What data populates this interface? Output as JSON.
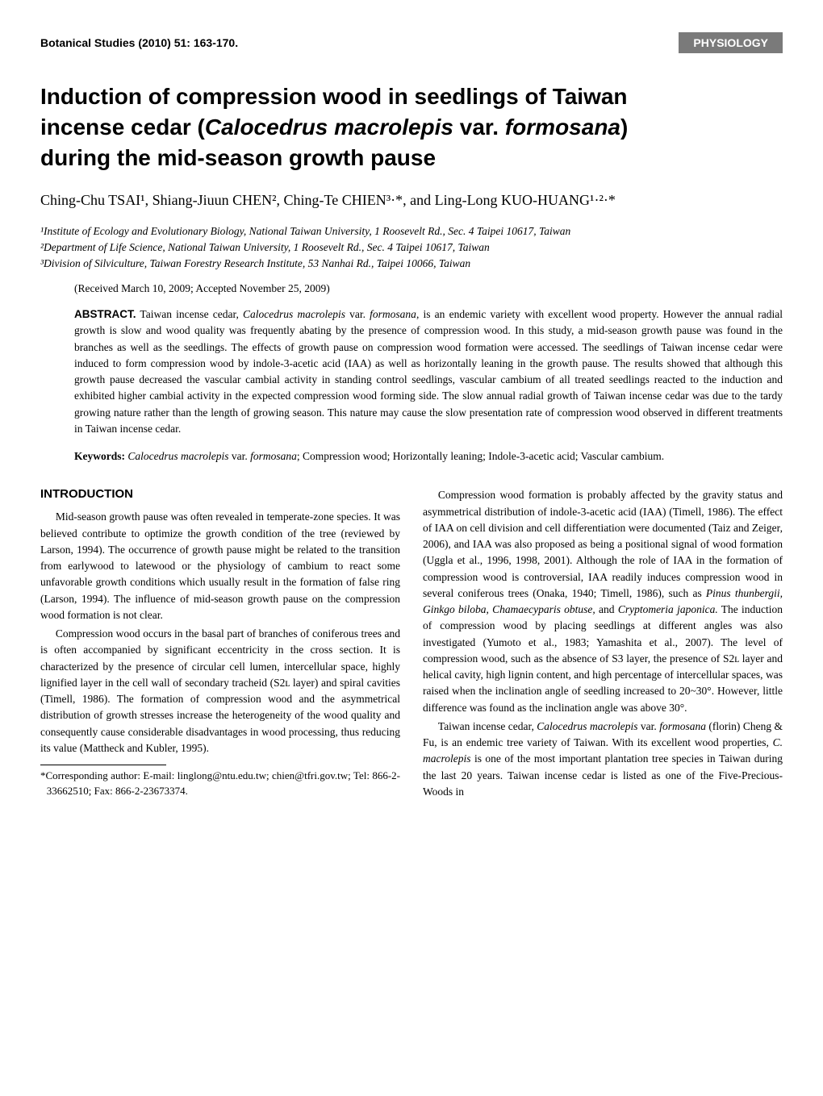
{
  "header": {
    "journal_ref": "Botanical Studies (2010) 51: 163-170.",
    "badge": "PHYSIOLOGY"
  },
  "title": {
    "line1": "Induction of compression wood in seedlings of Taiwan",
    "line2_pre": "incense cedar (",
    "line2_species": "Calocedrus macrolepis",
    "line2_var": " var. ",
    "line2_varname": "formosana",
    "line2_post": ")",
    "line3": "during the mid-season growth pause"
  },
  "authors": "Ching-Chu TSAI¹, Shiang-Jiuun CHEN², Ching-Te CHIEN³·*, and Ling-Long KUO-HUANG¹·²·*",
  "affiliations": {
    "a1": "¹Institute of Ecology and Evolutionary Biology, National Taiwan University, 1 Roosevelt Rd., Sec. 4 Taipei 10617, Taiwan",
    "a2": "²Department of Life Science, National Taiwan University, 1 Roosevelt Rd., Sec. 4 Taipei 10617, Taiwan",
    "a3": "³Division of Silviculture, Taiwan Forestry Research Institute, 53 Nanhai Rd., Taipei 10066, Taiwan"
  },
  "dates": "(Received March 10, 2009; Accepted November 25, 2009)",
  "abstract": {
    "label": "ABSTRACT.",
    "text_pre": "  Taiwan incense cedar, ",
    "species1": "Calocedrus macrolepis",
    "var_literal": " var. ",
    "species1_var": "formosana",
    "text_post": ", is an endemic variety with excellent wood property. However the annual radial growth is slow and wood quality was frequently abating by the presence of compression wood. In this study, a mid-season growth pause was found in the branches as well as the seedlings. The effects of growth pause on compression wood formation were accessed. The seedlings of Taiwan incense cedar were induced to form compression wood by indole-3-acetic acid (IAA) as well as horizontally leaning in the growth pause. The results showed that although this growth pause decreased the vascular cambial activity in standing control seedlings, vascular cambium of all treated seedlings reacted to the induction and exhibited higher cambial activity in the expected compression wood forming side. The slow annual radial growth of Taiwan incense cedar was due to the tardy growing nature rather than the length of growing season. This nature may cause the slow presentation rate of compression wood observed in different treatments in Taiwan incense cedar."
  },
  "keywords": {
    "label": "Keywords:",
    "species_text": " Calocedrus macrolepis",
    "var_literal": " var. ",
    "var_text": "formosana",
    "rest": "; Compression wood; Horizontally leaning; Indole-3-acetic acid; Vascular cambium."
  },
  "intro_heading": "INTRODUCTION",
  "col1": {
    "p1": "Mid-season growth pause was often revealed in temperate-zone species. It was believed contribute to optimize the growth condition of the tree (reviewed by Larson, 1994). The occurrence of growth pause might be related to the transition from earlywood to latewood or the physiology of cambium to react some unfavorable growth conditions which usually result in the formation of false ring (Larson, 1994). The influence of mid-season growth pause on the compression wood formation is not clear.",
    "p2": "Compression wood occurs in the basal part of branches of coniferous trees and is often accompanied by significant eccentricity in the cross section. It is characterized by the presence of circular cell lumen, intercellular space, highly lignified layer in the cell wall of secondary tracheid (S2ʟ layer) and spiral cavities (Timell, 1986). The formation of compression wood and the asymmetrical distribution of growth stresses increase the heterogeneity of the wood quality and consequently cause considerable disadvantages in wood processing, thus reducing its value (Mattheck and Kubler, 1995)."
  },
  "col2": {
    "p1_pre": "Compression wood formation is probably affected by the gravity status and asymmetrical distribution of indole-3-acetic acid (IAA) (Timell, 1986). The effect of IAA on cell division and cell differentiation were documented (Taiz and Zeiger, 2006), and IAA was also proposed as being a positional signal of wood formation (Uggla et al., 1996, 1998, 2001). Although the role of IAA in the formation of compression wood is controversial, IAA readily induces compression wood in several coniferous trees (Onaka, 1940; Timell, 1986), such as ",
    "p1_sp1": "Pinus thunbergii, Ginkgo biloba, Chamaecyparis obtuse,",
    "p1_mid": " and ",
    "p1_sp2": "Cryptomeria japonica.",
    "p1_post": " The induction of compression wood by placing seedlings at different angles was also investigated (Yumoto et al., 1983; Yamashita et al., 2007). The level of compression wood, such as the absence of S3 layer, the presence of S2ʟ layer and helical cavity, high lignin content, and high percentage of intercellular spaces, was raised when the inclination angle of seedling increased to 20~30°. However, little difference was found as the inclination angle was above 30°.",
    "p2_pre": "Taiwan incense cedar, ",
    "p2_sp1": "Calocedrus macrolepis",
    "p2_var": " var. ",
    "p2_sp2": "formosana",
    "p2_mid": " (florin) Cheng & Fu, is an endemic tree variety of Taiwan. With its excellent wood properties, ",
    "p2_sp3": "C. macrolepis",
    "p2_post": " is one of the most important plantation tree species in Taiwan during the last 20 years. Taiwan incense cedar is listed as one of the Five-Precious-Woods in"
  },
  "footnote": "*Corresponding author: E-mail: linglong@ntu.edu.tw; chien@tfri.gov.tw; Tel: 866-2-33662510; Fax: 866-2-23673374."
}
